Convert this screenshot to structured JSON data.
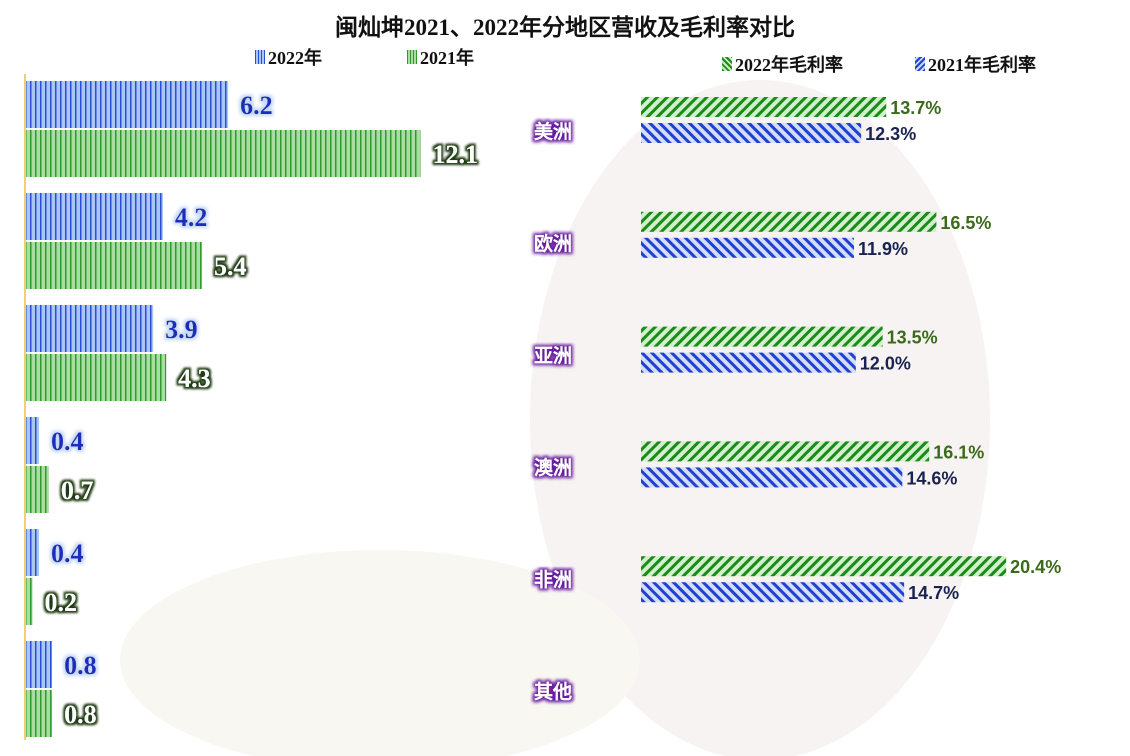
{
  "chart_data": [
    {
      "type": "bar",
      "orientation": "horizontal",
      "title": "闽灿坤2021、2022年分地区营收及毛利率对比",
      "categories": [
        "美洲",
        "欧洲",
        "亚洲",
        "澳洲",
        "非洲",
        "其他"
      ],
      "series": [
        {
          "name": "2022年",
          "values": [
            6.2,
            4.2,
            3.9,
            0.4,
            0.4,
            0.8
          ],
          "color": "#2a4fd6",
          "pattern": "vertical-lines"
        },
        {
          "name": "2021年",
          "values": [
            12.1,
            5.4,
            4.3,
            0.7,
            0.2,
            0.8
          ],
          "color": "#2e9a2e",
          "pattern": "vertical-lines"
        }
      ],
      "legend": "top-left",
      "grid": false
    },
    {
      "type": "bar",
      "orientation": "horizontal",
      "categories": [
        "美洲",
        "欧洲",
        "亚洲",
        "澳洲",
        "非洲"
      ],
      "series": [
        {
          "name": "2022年毛利率",
          "values": [
            13.7,
            16.5,
            13.5,
            16.1,
            20.4
          ],
          "labels": [
            "13.7%",
            "16.5%",
            "13.5%",
            "16.1%",
            "20.4%"
          ],
          "color": "#1a8a1a",
          "pattern": "diagonal"
        },
        {
          "name": "2021年毛利率",
          "values": [
            12.3,
            11.9,
            12.0,
            14.6,
            14.7
          ],
          "labels": [
            "12.3%",
            "11.9%",
            "12.0%",
            "14.6%",
            "14.7%"
          ],
          "color": "#2040d0",
          "pattern": "diagonal"
        }
      ],
      "legend": "top-right",
      "grid": false
    }
  ]
}
